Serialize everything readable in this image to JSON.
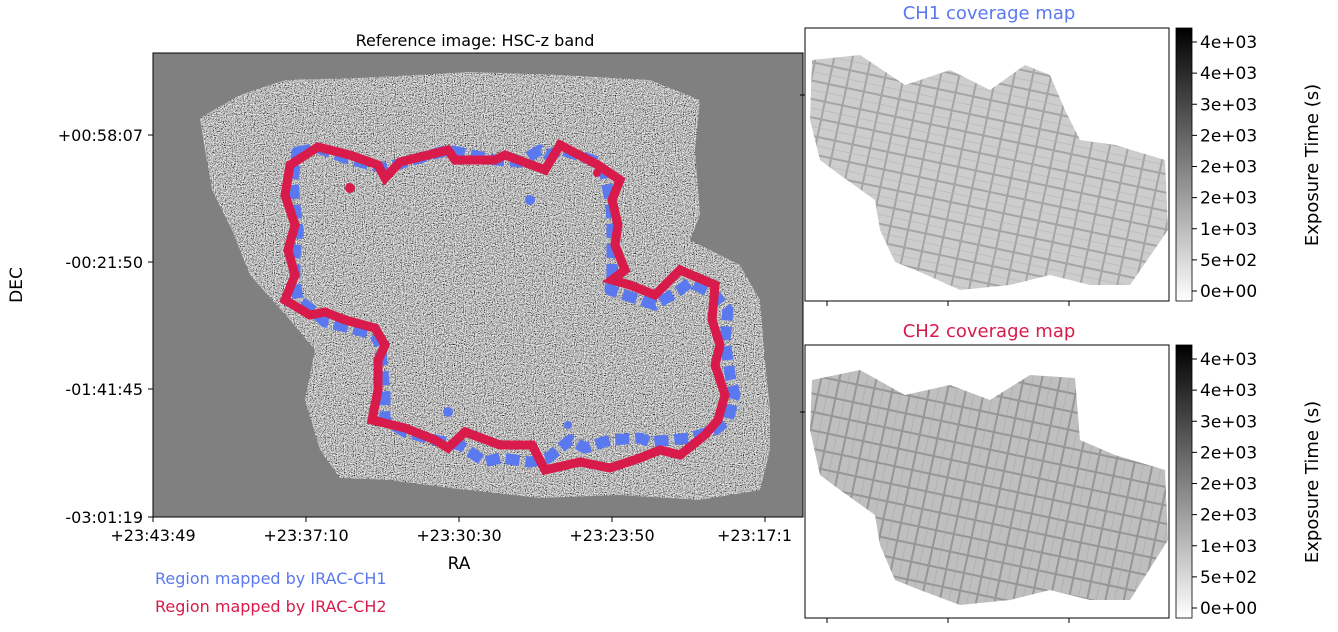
{
  "chart_data": [
    {
      "type": "image",
      "title": "Reference image: HSC-z band",
      "xlabel": "RA",
      "ylabel": "DEC",
      "x_ticks": [
        "+23:43:49",
        "+23:37:10",
        "+23:30:30",
        "+23:23:50",
        "+23:17:1"
      ],
      "y_ticks": [
        "+00:58:07",
        "-00:21:50",
        "-01:41:45",
        "-03:01:19"
      ],
      "legend_placement": "below",
      "series": [
        {
          "name": "Region mapped by IRAC-CH1",
          "color": "#5a78f0"
        },
        {
          "name": "Region mapped by IRAC-CH2",
          "color": "#d81b4a"
        }
      ]
    },
    {
      "type": "heatmap",
      "title": "CH1 coverage map",
      "title_color": "#5a78f0",
      "colorbar_label": "Exposure Time (s)",
      "colorbar_ticks": [
        "0e+00",
        "5e+02",
        "1e+03",
        "2e+03",
        "2e+03",
        "2e+03",
        "3e+03",
        "4e+03",
        "4e+03"
      ],
      "colormap": "gray_r"
    },
    {
      "type": "heatmap",
      "title": "CH2 coverage map",
      "title_color": "#d81b4a",
      "colorbar_label": "Exposure Time (s)",
      "colorbar_ticks": [
        "0e+00",
        "5e+02",
        "1e+03",
        "2e+03",
        "2e+03",
        "2e+03",
        "3e+03",
        "4e+03",
        "4e+03"
      ],
      "colormap": "gray_r"
    }
  ]
}
